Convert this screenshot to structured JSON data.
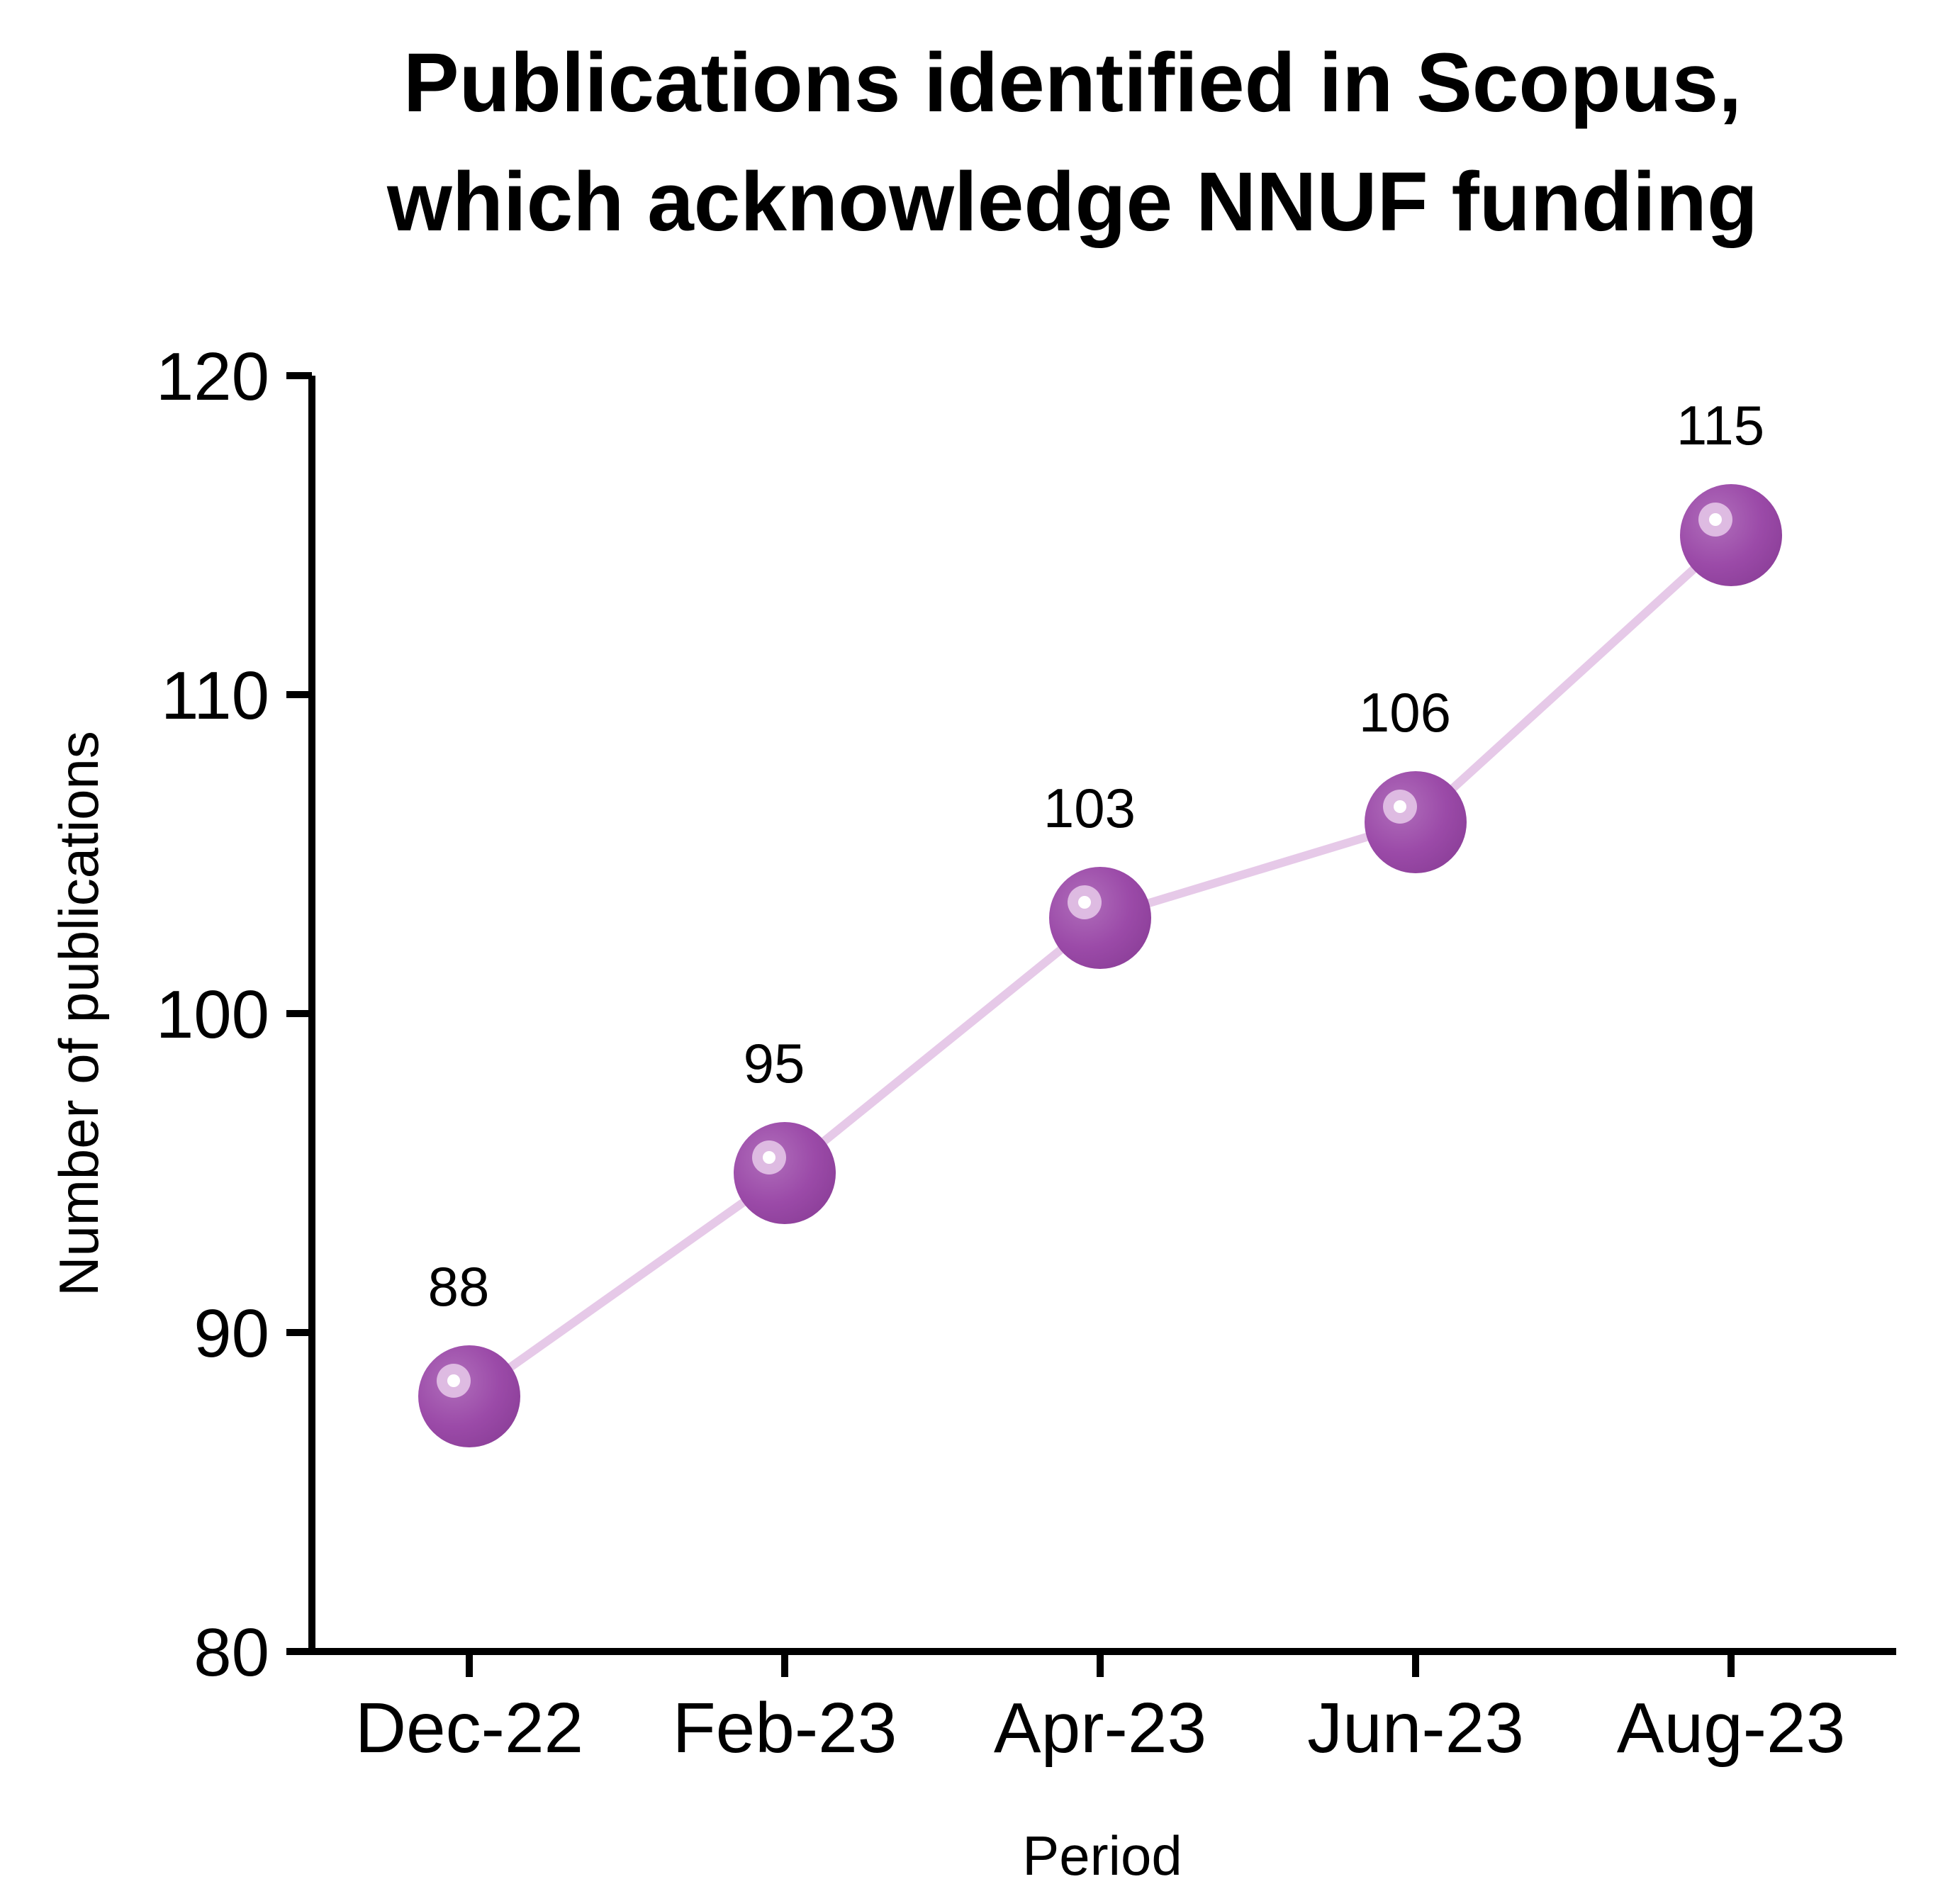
{
  "chart_data": {
    "type": "line",
    "title_lines": [
      "Publications identified in Scopus,",
      "which acknowledge NNUF funding"
    ],
    "xlabel": "Period",
    "ylabel": "Number of publications",
    "categories": [
      "Dec-22",
      "Feb-23",
      "Apr-23",
      "Jun-23",
      "Aug-23"
    ],
    "series": [
      {
        "values": [
          88,
          95,
          103,
          106,
          115
        ]
      }
    ],
    "data_labels": [
      "88",
      "95",
      "103",
      "106",
      "115"
    ],
    "ylim": [
      80,
      120
    ],
    "yticks": [
      80,
      90,
      100,
      110,
      120
    ],
    "ytick_labels": [
      "80",
      "90",
      "100",
      "110",
      "120"
    ],
    "grid": false,
    "colors": {
      "marker": "#9b4aa8",
      "marker_highlight": "#e3c4e7",
      "line": "#e6c9e8",
      "axis": "#000000"
    }
  }
}
